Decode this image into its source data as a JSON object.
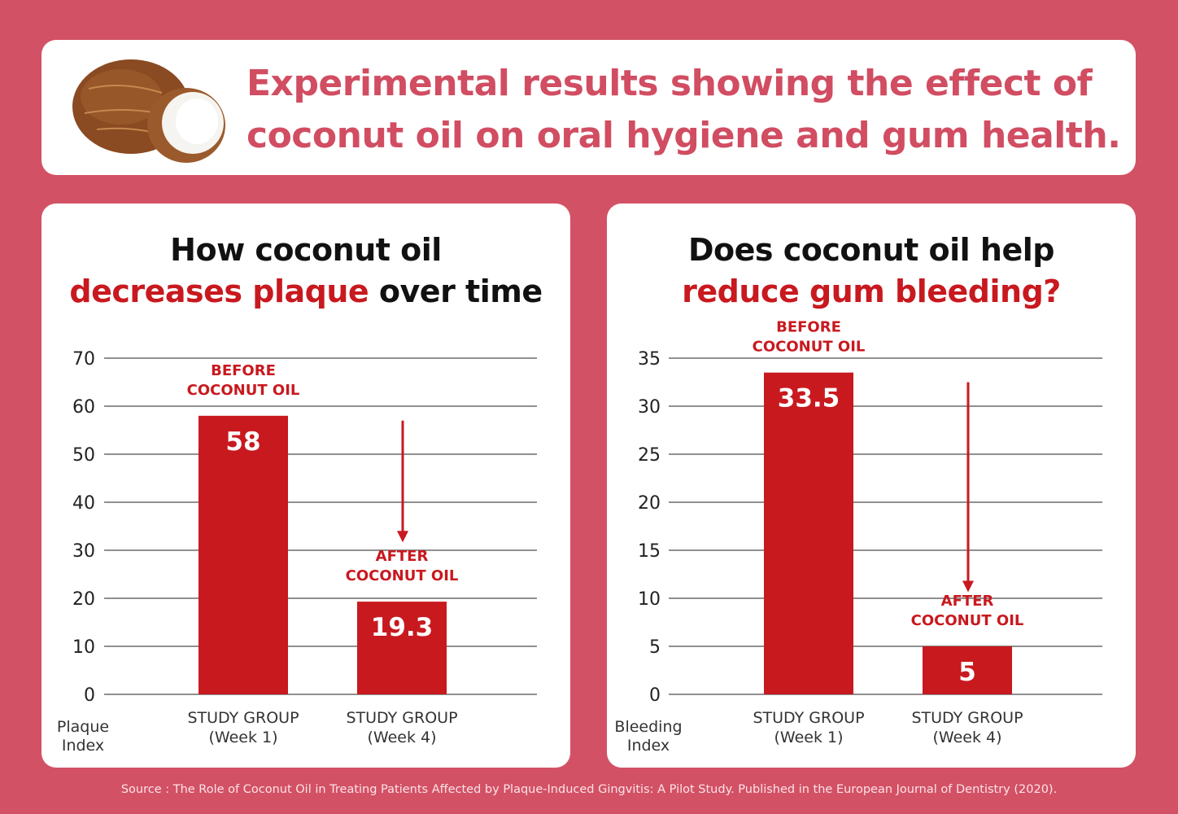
{
  "header": {
    "title_line1": "Experimental results showing the effect of",
    "title_line2": "coconut oil on oral hygiene and gum health."
  },
  "colors": {
    "background": "#d35165",
    "bar": "#c8191f",
    "title": "#d14d62"
  },
  "chart_data": [
    {
      "type": "bar",
      "title_line1": "How coconut oil",
      "title_red": "decreases plaque",
      "title_rest": " over time",
      "ylabel_line1": "Plaque",
      "ylabel_line2": "Index",
      "ylim": [
        0,
        70
      ],
      "yticks": [
        0,
        10,
        20,
        30,
        40,
        50,
        60,
        70
      ],
      "categories": [
        {
          "line1": "STUDY GROUP",
          "line2": "(Week 1)"
        },
        {
          "line1": "STUDY GROUP",
          "line2": "(Week 4)"
        }
      ],
      "values": [
        58,
        19.3
      ],
      "value_labels": [
        "58",
        "19.3"
      ],
      "annotations": [
        {
          "line1": "BEFORE",
          "line2": "COCONUT OIL"
        },
        {
          "line1": "AFTER",
          "line2": "COCONUT OIL"
        }
      ],
      "grid": true,
      "arrow": {
        "from": 57,
        "to": 32
      }
    },
    {
      "type": "bar",
      "title_line1": "Does coconut oil help",
      "title_red": "reduce gum bleeding?",
      "title_rest": "",
      "ylabel_line1": "Bleeding",
      "ylabel_line2": "Index",
      "ylim": [
        0,
        35
      ],
      "yticks": [
        0,
        5,
        10,
        15,
        20,
        25,
        30,
        35
      ],
      "categories": [
        {
          "line1": "STUDY GROUP",
          "line2": "(Week 1)"
        },
        {
          "line1": "STUDY GROUP",
          "line2": "(Week 4)"
        }
      ],
      "values": [
        33.5,
        5
      ],
      "value_labels": [
        "33.5",
        "5"
      ],
      "annotations": [
        {
          "line1": "BEFORE",
          "line2": "COCONUT OIL"
        },
        {
          "line1": "AFTER",
          "line2": "COCONUT OIL"
        }
      ],
      "grid": true,
      "arrow": {
        "from": 32.5,
        "to": 10.8
      }
    }
  ],
  "source": "Source : The Role of Coconut Oil in Treating Patients Affected by Plaque-Induced Gingvitis: A Pilot Study. Published in the European Journal of Dentistry (2020)."
}
